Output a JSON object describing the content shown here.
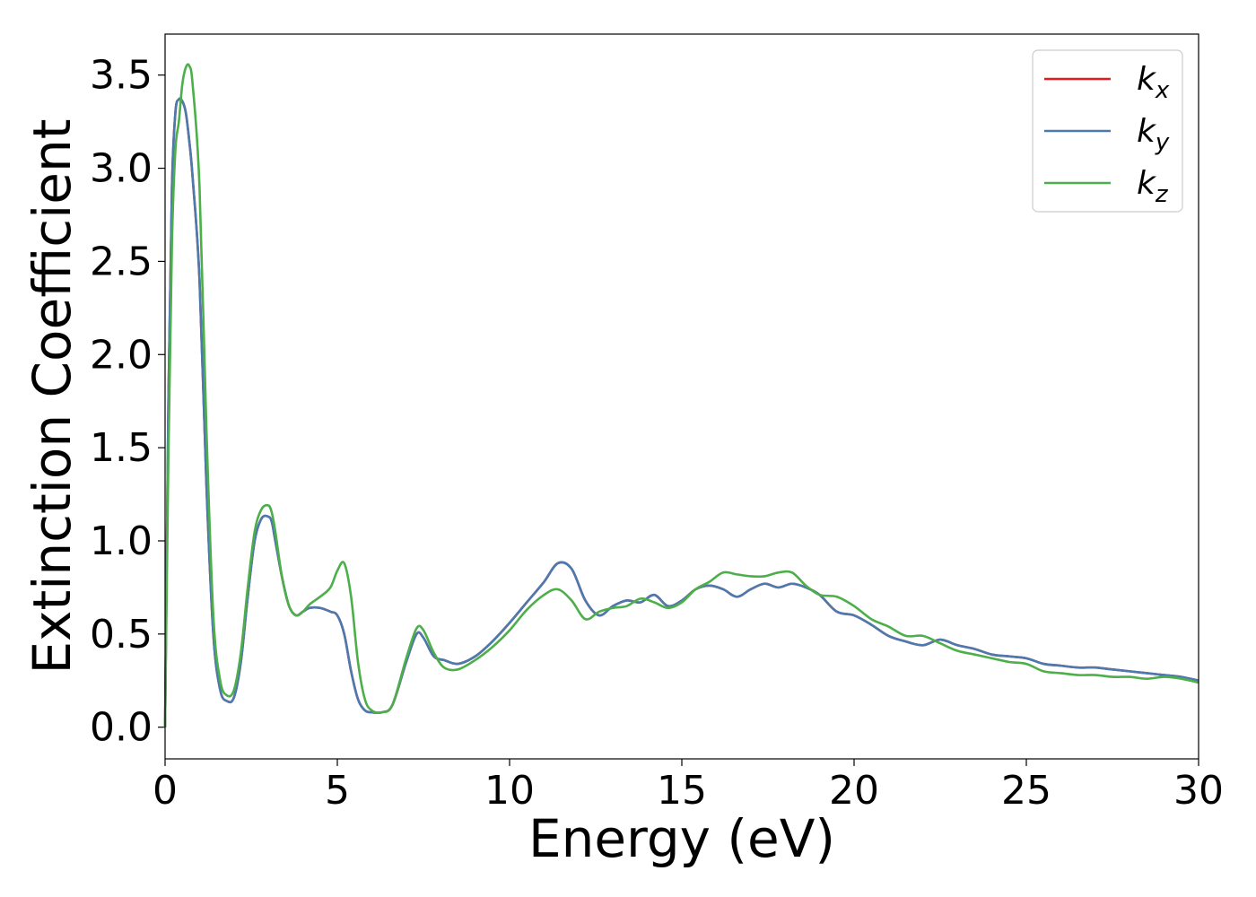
{
  "chart_data": {
    "type": "line",
    "xlabel": "Energy (eV)",
    "ylabel": "Extinction Coefficient",
    "xlim": [
      0,
      30
    ],
    "ylim": [
      -0.17,
      3.72
    ],
    "xticks": [
      0,
      5,
      10,
      15,
      20,
      25,
      30
    ],
    "xtick_labels": [
      "0",
      "5",
      "10",
      "15",
      "20",
      "25",
      "30"
    ],
    "yticks": [
      0.0,
      0.5,
      1.0,
      1.5,
      2.0,
      2.5,
      3.0,
      3.5
    ],
    "ytick_labels": [
      "0.0",
      "0.5",
      "1.0",
      "1.5",
      "2.0",
      "2.5",
      "3.0",
      "3.5"
    ],
    "grid": false,
    "legend_position": "top-right",
    "x": [
      0,
      0.1,
      0.2,
      0.3,
      0.4,
      0.5,
      0.6,
      0.7,
      0.8,
      1.0,
      1.2,
      1.4,
      1.6,
      1.8,
      2.0,
      2.2,
      2.4,
      2.6,
      2.8,
      3.0,
      3.1,
      3.2,
      3.4,
      3.6,
      3.8,
      4.0,
      4.2,
      4.5,
      4.8,
      5.0,
      5.2,
      5.4,
      5.6,
      5.8,
      6.0,
      6.3,
      6.6,
      7.0,
      7.3,
      7.5,
      7.8,
      8.1,
      8.5,
      9.0,
      9.5,
      10.0,
      10.5,
      11.0,
      11.4,
      11.8,
      12.2,
      12.6,
      13.0,
      13.4,
      13.8,
      14.2,
      14.6,
      15.0,
      15.4,
      15.8,
      16.2,
      16.6,
      17.0,
      17.4,
      17.8,
      18.2,
      18.6,
      19.0,
      19.5,
      20.0,
      20.5,
      21.0,
      21.5,
      22.0,
      22.5,
      23.0,
      23.5,
      24.0,
      24.5,
      25.0,
      25.5,
      26.0,
      26.5,
      27.0,
      27.5,
      28.0,
      28.5,
      29.0,
      29.5,
      30.0
    ],
    "series": [
      {
        "name": "k_x",
        "label_base": "k",
        "label_sub": "x",
        "color": "#e41a1c",
        "values": [
          0.0,
          1.8,
          2.9,
          3.3,
          3.37,
          3.36,
          3.3,
          3.15,
          2.95,
          2.4,
          1.3,
          0.5,
          0.2,
          0.14,
          0.16,
          0.35,
          0.7,
          1.0,
          1.12,
          1.13,
          1.1,
          1.0,
          0.8,
          0.65,
          0.6,
          0.62,
          0.64,
          0.64,
          0.62,
          0.6,
          0.5,
          0.3,
          0.15,
          0.09,
          0.08,
          0.08,
          0.12,
          0.35,
          0.5,
          0.48,
          0.38,
          0.36,
          0.34,
          0.38,
          0.46,
          0.56,
          0.67,
          0.78,
          0.88,
          0.85,
          0.68,
          0.6,
          0.65,
          0.68,
          0.67,
          0.71,
          0.65,
          0.68,
          0.74,
          0.76,
          0.74,
          0.7,
          0.74,
          0.77,
          0.75,
          0.77,
          0.75,
          0.71,
          0.62,
          0.6,
          0.55,
          0.49,
          0.46,
          0.44,
          0.47,
          0.44,
          0.42,
          0.39,
          0.38,
          0.37,
          0.34,
          0.33,
          0.32,
          0.32,
          0.31,
          0.3,
          0.29,
          0.28,
          0.27,
          0.25
        ]
      },
      {
        "name": "k_y",
        "label_base": "k",
        "label_sub": "y",
        "color": "#4a7ab0",
        "values": [
          0.0,
          1.8,
          2.9,
          3.3,
          3.37,
          3.36,
          3.3,
          3.15,
          2.95,
          2.4,
          1.3,
          0.5,
          0.2,
          0.14,
          0.16,
          0.35,
          0.7,
          1.0,
          1.12,
          1.13,
          1.1,
          1.0,
          0.8,
          0.65,
          0.6,
          0.62,
          0.64,
          0.64,
          0.62,
          0.6,
          0.5,
          0.3,
          0.15,
          0.09,
          0.08,
          0.08,
          0.12,
          0.35,
          0.5,
          0.48,
          0.38,
          0.36,
          0.34,
          0.38,
          0.46,
          0.56,
          0.67,
          0.78,
          0.88,
          0.85,
          0.68,
          0.6,
          0.65,
          0.68,
          0.67,
          0.71,
          0.65,
          0.68,
          0.74,
          0.76,
          0.74,
          0.7,
          0.74,
          0.77,
          0.75,
          0.77,
          0.75,
          0.71,
          0.62,
          0.6,
          0.55,
          0.49,
          0.46,
          0.44,
          0.47,
          0.44,
          0.42,
          0.39,
          0.38,
          0.37,
          0.34,
          0.33,
          0.32,
          0.32,
          0.31,
          0.3,
          0.29,
          0.28,
          0.27,
          0.25
        ]
      },
      {
        "name": "k_z",
        "label_base": "k",
        "label_sub": "z",
        "color": "#4daf4a",
        "values": [
          0.0,
          1.5,
          2.6,
          3.1,
          3.25,
          3.45,
          3.54,
          3.55,
          3.45,
          2.9,
          1.6,
          0.6,
          0.25,
          0.17,
          0.2,
          0.4,
          0.75,
          1.05,
          1.17,
          1.19,
          1.15,
          1.05,
          0.8,
          0.65,
          0.6,
          0.62,
          0.66,
          0.7,
          0.75,
          0.84,
          0.88,
          0.7,
          0.35,
          0.15,
          0.09,
          0.08,
          0.12,
          0.37,
          0.53,
          0.52,
          0.4,
          0.32,
          0.31,
          0.36,
          0.43,
          0.52,
          0.63,
          0.71,
          0.74,
          0.68,
          0.58,
          0.62,
          0.64,
          0.65,
          0.69,
          0.67,
          0.64,
          0.67,
          0.74,
          0.78,
          0.83,
          0.82,
          0.81,
          0.81,
          0.83,
          0.83,
          0.76,
          0.71,
          0.7,
          0.65,
          0.58,
          0.54,
          0.49,
          0.49,
          0.45,
          0.41,
          0.39,
          0.37,
          0.35,
          0.34,
          0.3,
          0.29,
          0.28,
          0.28,
          0.27,
          0.27,
          0.26,
          0.27,
          0.26,
          0.24
        ]
      }
    ]
  }
}
